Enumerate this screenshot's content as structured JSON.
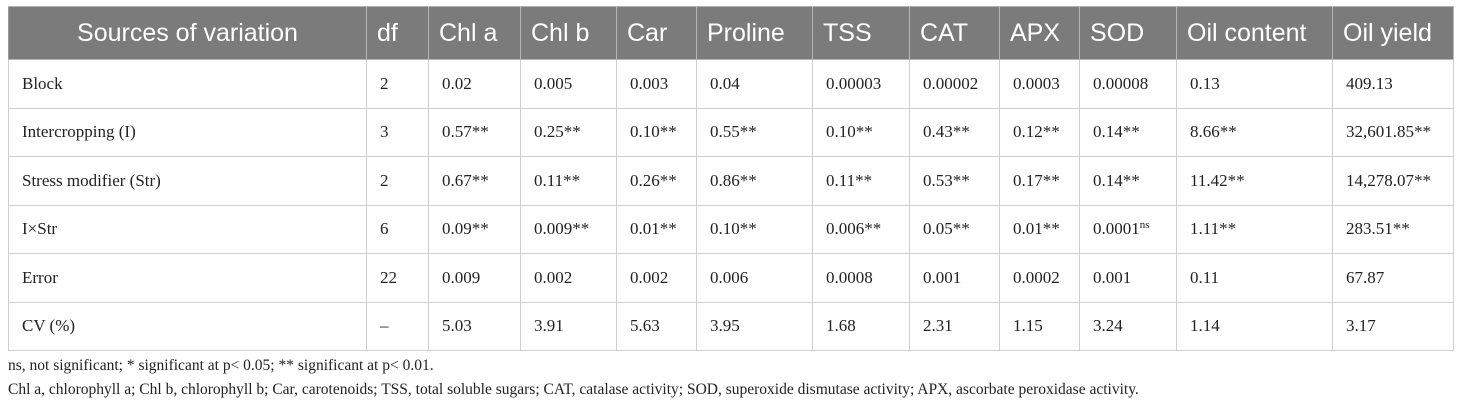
{
  "table": {
    "headers": [
      "Sources of variation",
      "df",
      "Chl a",
      "Chl b",
      "Car",
      "Proline",
      "TSS",
      "CAT",
      "APX",
      "SOD",
      "Oil content",
      "Oil yield"
    ],
    "rows": [
      {
        "cells": [
          {
            "v": "Block"
          },
          {
            "v": "2"
          },
          {
            "v": "0.02"
          },
          {
            "v": "0.005"
          },
          {
            "v": "0.003"
          },
          {
            "v": "0.04"
          },
          {
            "v": "0.00003"
          },
          {
            "v": "0.00002"
          },
          {
            "v": "0.0003"
          },
          {
            "v": "0.00008"
          },
          {
            "v": "0.13"
          },
          {
            "v": "409.13"
          }
        ]
      },
      {
        "cells": [
          {
            "v": "Intercropping (I)"
          },
          {
            "v": "3"
          },
          {
            "v": "0.57**"
          },
          {
            "v": "0.25**"
          },
          {
            "v": "0.10**"
          },
          {
            "v": "0.55**"
          },
          {
            "v": "0.10**"
          },
          {
            "v": "0.43**"
          },
          {
            "v": "0.12**"
          },
          {
            "v": "0.14**"
          },
          {
            "v": "8.66**"
          },
          {
            "v": "32,601.85**"
          }
        ]
      },
      {
        "cells": [
          {
            "v": "Stress modifier (Str)"
          },
          {
            "v": "2"
          },
          {
            "v": "0.67**"
          },
          {
            "v": "0.11**"
          },
          {
            "v": "0.26**"
          },
          {
            "v": "0.86**"
          },
          {
            "v": "0.11**"
          },
          {
            "v": "0.53**"
          },
          {
            "v": "0.17**"
          },
          {
            "v": "0.14**"
          },
          {
            "v": "11.42**"
          },
          {
            "v": "14,278.07**"
          }
        ]
      },
      {
        "cells": [
          {
            "v": "I×Str"
          },
          {
            "v": "6"
          },
          {
            "v": "0.09**"
          },
          {
            "v": "0.009**"
          },
          {
            "v": "0.01**"
          },
          {
            "v": "0.10**"
          },
          {
            "v": "0.006**"
          },
          {
            "v": "0.05**"
          },
          {
            "v": "0.01**"
          },
          {
            "v": "0.0001",
            "sup": "ns"
          },
          {
            "v": "1.11**"
          },
          {
            "v": "283.51**"
          }
        ]
      },
      {
        "cells": [
          {
            "v": "Error"
          },
          {
            "v": "22"
          },
          {
            "v": "0.009"
          },
          {
            "v": "0.002"
          },
          {
            "v": "0.002"
          },
          {
            "v": "0.006"
          },
          {
            "v": "0.0008"
          },
          {
            "v": "0.001"
          },
          {
            "v": "0.0002"
          },
          {
            "v": "0.001"
          },
          {
            "v": "0.11"
          },
          {
            "v": "67.87"
          }
        ]
      },
      {
        "cells": [
          {
            "v": "CV (%)"
          },
          {
            "v": "–"
          },
          {
            "v": "5.03"
          },
          {
            "v": "3.91"
          },
          {
            "v": "5.63"
          },
          {
            "v": "3.95"
          },
          {
            "v": "1.68"
          },
          {
            "v": "2.31"
          },
          {
            "v": "1.15"
          },
          {
            "v": "3.24"
          },
          {
            "v": "1.14"
          },
          {
            "v": "3.17"
          }
        ]
      }
    ]
  },
  "footnotes": {
    "significance": "ns, not significant; * significant at p< 0.05; ** significant at p< 0.01.",
    "abbreviations": "Chl a, chlorophyll a; Chl b, chlorophyll b; Car, carotenoids; TSS, total soluble sugars; CAT, catalase activity; SOD, superoxide dismutase activity; APX, ascorbate peroxidase activity."
  },
  "colors": {
    "header_bg": "#7b7b7b",
    "header_text": "#ffffff",
    "grid": "#cfcfcf"
  }
}
